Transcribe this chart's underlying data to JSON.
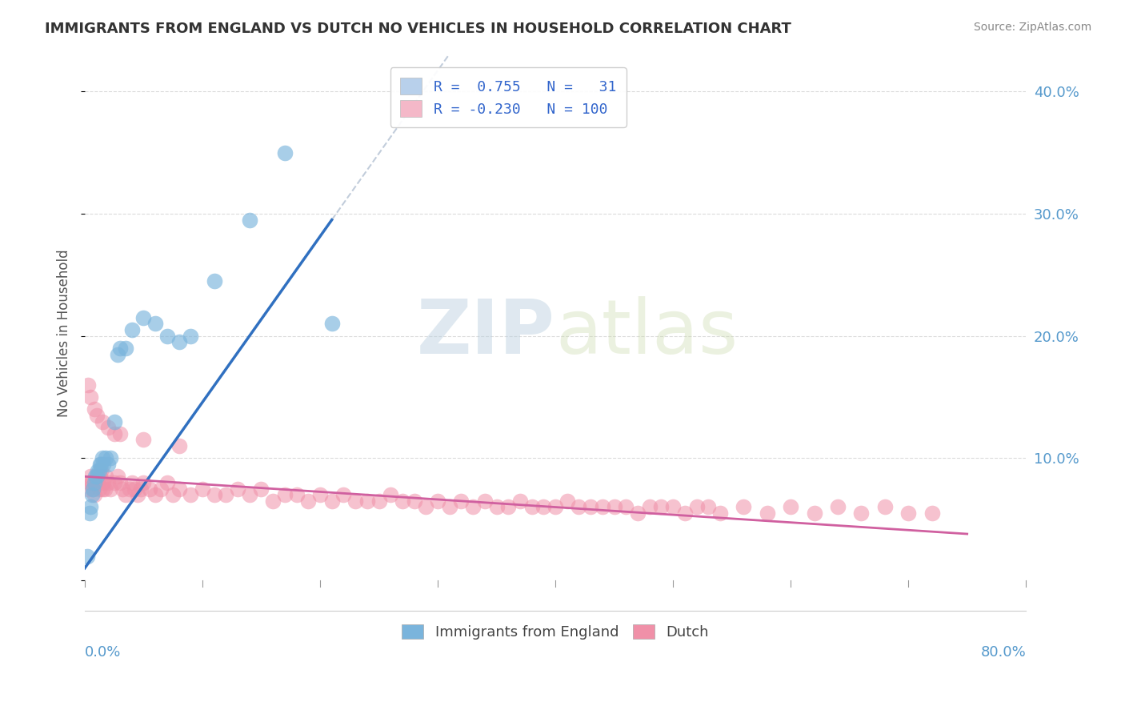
{
  "title": "IMMIGRANTS FROM ENGLAND VS DUTCH NO VEHICLES IN HOUSEHOLD CORRELATION CHART",
  "source": "Source: ZipAtlas.com",
  "ylabel": "No Vehicles in Household",
  "xlim": [
    0.0,
    0.8
  ],
  "ylim": [
    -0.025,
    0.43
  ],
  "yticks": [
    0.0,
    0.1,
    0.2,
    0.3,
    0.4
  ],
  "legend1_label": "R =  0.755   N =   31",
  "legend2_label": "R = -0.230   N = 100",
  "legend1_color": "#b8d0eb",
  "legend2_color": "#f4b8c8",
  "scatter_england_color": "#7ab4dc",
  "scatter_dutch_color": "#f090a8",
  "trendline_england_color": "#3070c0",
  "trendline_dutch_color": "#d060a0",
  "legend_text_color": "#3366cc",
  "ytick_color": "#5599cc",
  "watermark_color": "#c8d8ea",
  "grid_color": "#cccccc",
  "title_color": "#333333",
  "source_color": "#888888",
  "england_x": [
    0.002,
    0.004,
    0.005,
    0.006,
    0.007,
    0.008,
    0.009,
    0.01,
    0.011,
    0.012,
    0.013,
    0.014,
    0.015,
    0.016,
    0.018,
    0.02,
    0.022,
    0.025,
    0.028,
    0.03,
    0.035,
    0.04,
    0.05,
    0.06,
    0.07,
    0.08,
    0.09,
    0.11,
    0.14,
    0.17,
    0.21
  ],
  "england_y": [
    0.02,
    0.055,
    0.06,
    0.07,
    0.075,
    0.08,
    0.085,
    0.085,
    0.09,
    0.09,
    0.095,
    0.095,
    0.1,
    0.095,
    0.1,
    0.095,
    0.1,
    0.13,
    0.185,
    0.19,
    0.19,
    0.205,
    0.215,
    0.21,
    0.2,
    0.195,
    0.2,
    0.245,
    0.295,
    0.35,
    0.21
  ],
  "dutch_x": [
    0.003,
    0.004,
    0.005,
    0.006,
    0.007,
    0.008,
    0.009,
    0.01,
    0.011,
    0.012,
    0.013,
    0.014,
    0.015,
    0.016,
    0.017,
    0.018,
    0.02,
    0.022,
    0.025,
    0.028,
    0.03,
    0.032,
    0.035,
    0.038,
    0.04,
    0.042,
    0.045,
    0.048,
    0.05,
    0.055,
    0.06,
    0.065,
    0.07,
    0.075,
    0.08,
    0.09,
    0.1,
    0.11,
    0.12,
    0.13,
    0.14,
    0.15,
    0.16,
    0.17,
    0.18,
    0.19,
    0.2,
    0.21,
    0.22,
    0.23,
    0.24,
    0.25,
    0.26,
    0.27,
    0.28,
    0.29,
    0.3,
    0.31,
    0.32,
    0.33,
    0.34,
    0.35,
    0.36,
    0.37,
    0.38,
    0.39,
    0.4,
    0.41,
    0.42,
    0.43,
    0.44,
    0.45,
    0.46,
    0.47,
    0.48,
    0.49,
    0.5,
    0.51,
    0.52,
    0.53,
    0.54,
    0.56,
    0.58,
    0.6,
    0.62,
    0.64,
    0.66,
    0.68,
    0.7,
    0.72,
    0.003,
    0.005,
    0.008,
    0.01,
    0.015,
    0.02,
    0.025,
    0.03,
    0.05,
    0.08
  ],
  "dutch_y": [
    0.075,
    0.08,
    0.085,
    0.08,
    0.075,
    0.07,
    0.08,
    0.085,
    0.08,
    0.075,
    0.085,
    0.09,
    0.075,
    0.08,
    0.075,
    0.085,
    0.08,
    0.075,
    0.08,
    0.085,
    0.08,
    0.075,
    0.07,
    0.075,
    0.08,
    0.075,
    0.07,
    0.075,
    0.08,
    0.075,
    0.07,
    0.075,
    0.08,
    0.07,
    0.075,
    0.07,
    0.075,
    0.07,
    0.07,
    0.075,
    0.07,
    0.075,
    0.065,
    0.07,
    0.07,
    0.065,
    0.07,
    0.065,
    0.07,
    0.065,
    0.065,
    0.065,
    0.07,
    0.065,
    0.065,
    0.06,
    0.065,
    0.06,
    0.065,
    0.06,
    0.065,
    0.06,
    0.06,
    0.065,
    0.06,
    0.06,
    0.06,
    0.065,
    0.06,
    0.06,
    0.06,
    0.06,
    0.06,
    0.055,
    0.06,
    0.06,
    0.06,
    0.055,
    0.06,
    0.06,
    0.055,
    0.06,
    0.055,
    0.06,
    0.055,
    0.06,
    0.055,
    0.06,
    0.055,
    0.055,
    0.16,
    0.15,
    0.14,
    0.135,
    0.13,
    0.125,
    0.12,
    0.12,
    0.115,
    0.11
  ],
  "eng_trend_x0": 0.0,
  "eng_trend_x1": 0.21,
  "eng_trend_y0": 0.01,
  "eng_trend_y1": 0.295,
  "dutch_trend_x0": 0.0,
  "dutch_trend_x1": 0.75,
  "dutch_trend_y0": 0.085,
  "dutch_trend_y1": 0.038
}
